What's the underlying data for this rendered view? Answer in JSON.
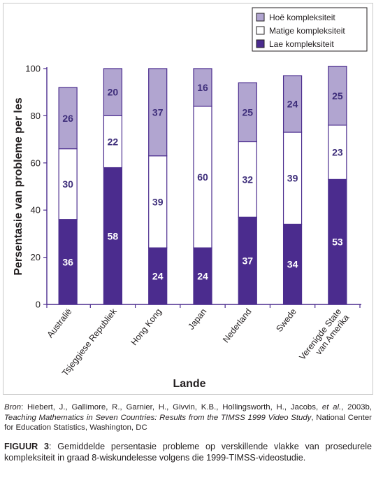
{
  "chart_data": {
    "type": "bar",
    "stacked": true,
    "categories": [
      "Australië",
      "Tsjeggiese Republiek",
      "Hong Kong",
      "Japan",
      "Nederland",
      "Swede",
      "Verenigde State van Amerika"
    ],
    "series": [
      {
        "name": "Lae kompleksiteit",
        "values": [
          36,
          58,
          24,
          24,
          37,
          34,
          53
        ],
        "color": "#4b2c8e"
      },
      {
        "name": "Matige kompleksiteit",
        "values": [
          30,
          22,
          39,
          60,
          32,
          39,
          23
        ],
        "color": "#ffffff"
      },
      {
        "name": "Hoë kompleksiteit",
        "values": [
          26,
          20,
          37,
          16,
          25,
          24,
          25
        ],
        "color": "#b1a5d0"
      }
    ],
    "title": "",
    "xlabel": "Lande",
    "ylabel": "Persentasie van probleme per les",
    "ylim": [
      0,
      100
    ],
    "yticks": [
      0,
      20,
      40,
      60,
      80,
      100
    ],
    "grid": false,
    "legend_position": "top-right",
    "legend_order": [
      "Hoë kompleksiteit",
      "Matige kompleksiteit",
      "Lae kompleksiteit"
    ],
    "bar_outline_color": "#4b2c8e"
  },
  "source": {
    "label": "Bron",
    "text_before": ": Hiebert, J., Gallimore, R., Garnier, H., Givvin, K.B., Hollingsworth, H., Jacobs, ",
    "etal": "et al.",
    "text_mid": ", 2003b, ",
    "title": "Teaching Mathematics in Seven Countries: Results from the TIMSS 1999 Video Study",
    "text_after": ", National Center for Education Statistics, Washington, DC"
  },
  "caption": {
    "label": "FIGUUR 3",
    "text": ": Gemiddelde persentasie probleme op verskillende vlakke van prosedurele kompleksiteit in graad 8-wiskundelesse volgens die 1999-TIMSS-videostudie."
  }
}
